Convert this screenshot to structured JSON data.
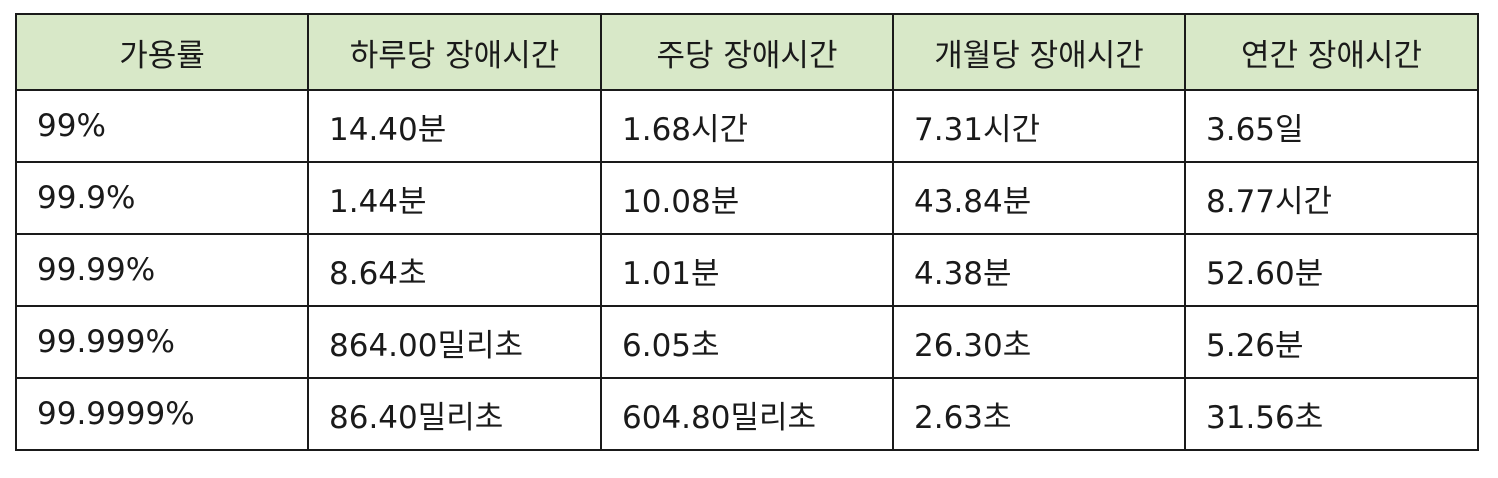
{
  "table": {
    "headers": [
      "가용률",
      "하루당 장애시간",
      "주당 장애시간",
      "개월당 장애시간",
      "연간 장애시간"
    ],
    "rows": [
      [
        "99%",
        "14.40분",
        "1.68시간",
        "7.31시간",
        "3.65일"
      ],
      [
        "99.9%",
        "1.44분",
        "10.08분",
        "43.84분",
        "8.77시간"
      ],
      [
        "99.99%",
        "8.64초",
        "1.01분",
        "4.38분",
        "52.60분"
      ],
      [
        "99.999%",
        "864.00밀리초",
        "6.05초",
        "26.30초",
        "5.26분"
      ],
      [
        "99.9999%",
        "86.40밀리초",
        "604.80밀리초",
        "2.63초",
        "31.56초"
      ]
    ]
  },
  "colors": {
    "header_background": "#d8e8c8",
    "border": "#1a1a1a",
    "text": "#1a1a1a"
  }
}
